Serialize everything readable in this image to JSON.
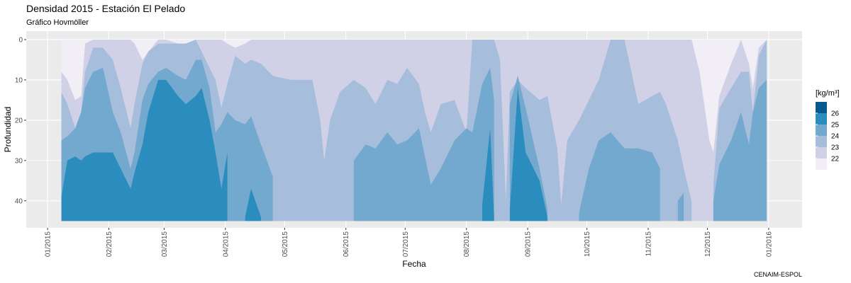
{
  "chart_data": {
    "type": "hovmoller",
    "title": "Densidad 2015 - Estación El Pelado",
    "subtitle": "Gráfico Hovmöller",
    "caption": "CENAIM-ESPOL",
    "x_label": "Fecha",
    "y_label": "Profundidad",
    "x": [
      7,
      10,
      14,
      17,
      19,
      23,
      28,
      33,
      37,
      42,
      44,
      48,
      51,
      56,
      60,
      66,
      70,
      75,
      78,
      82,
      85,
      88,
      91,
      95,
      100,
      103,
      108,
      114,
      123,
      134,
      138,
      140,
      143,
      148,
      155,
      161,
      166,
      172,
      177,
      182,
      188,
      191,
      194,
      199,
      206,
      212,
      215,
      220,
      224,
      226,
      229,
      232,
      234,
      238,
      242,
      249,
      253,
      258,
      260,
      263,
      269,
      274,
      279,
      285,
      292,
      299,
      306,
      310,
      313,
      319,
      322,
      326,
      330,
      335,
      337,
      340,
      346,
      351,
      355,
      357,
      360,
      364
    ],
    "bottom": 45,
    "series": [
      {
        "color": "#f1eef6",
        "values": [
          0,
          0,
          0,
          0,
          0,
          0,
          0,
          0,
          0,
          0,
          0,
          0,
          0,
          0,
          0,
          0,
          0,
          0,
          0,
          0,
          0,
          0,
          0,
          0,
          0,
          0,
          0,
          0,
          0,
          0,
          0,
          0,
          0,
          0,
          0,
          0,
          0,
          0,
          0,
          0,
          0,
          0,
          0,
          0,
          0,
          0,
          0,
          0,
          0,
          0,
          0,
          0,
          0,
          0,
          0,
          0,
          0,
          0,
          0,
          0,
          0,
          0,
          0,
          0,
          0,
          0,
          0,
          0,
          0,
          0,
          0,
          0,
          0,
          0,
          0,
          0,
          0,
          0,
          0,
          0,
          0,
          0
        ]
      },
      {
        "color": "#d0d1e6",
        "values": [
          8,
          10,
          15,
          14,
          1,
          0,
          0,
          0,
          0,
          0,
          1,
          5,
          3,
          0,
          0,
          1,
          1,
          0,
          0,
          0,
          0,
          0,
          1,
          2,
          1,
          0,
          0,
          0,
          0,
          0,
          0,
          0,
          0,
          0,
          0,
          0,
          0,
          0,
          0,
          0,
          0,
          0,
          0,
          0,
          0,
          0,
          0,
          0,
          0,
          0,
          0,
          0,
          0,
          0,
          0,
          0,
          0,
          0,
          0,
          0,
          0,
          0,
          0,
          0,
          0,
          0,
          0,
          0,
          0,
          0,
          0,
          0,
          8,
          25,
          28,
          14,
          6,
          0,
          6,
          12,
          2,
          0
        ]
      },
      {
        "color": "#a6bddb",
        "values": [
          13,
          16,
          22,
          18,
          8,
          2,
          2,
          5,
          12,
          22,
          16,
          6,
          3,
          1,
          1,
          1,
          1,
          0,
          3,
          7,
          10,
          17,
          11,
          4,
          6,
          5,
          6,
          9,
          10,
          10,
          20,
          30,
          20,
          13,
          10,
          12,
          16,
          10,
          11,
          7,
          11,
          18,
          23,
          16,
          15,
          23,
          0,
          0,
          0,
          0,
          5,
          40,
          13,
          10,
          12,
          15,
          14,
          27,
          41,
          25,
          20,
          15,
          10,
          0,
          0,
          16,
          14,
          13,
          16,
          25,
          32,
          40,
          null,
          null,
          36,
          17,
          12,
          8,
          8,
          18,
          4,
          0
        ]
      },
      {
        "color": "#74a9cf",
        "values": [
          25,
          24,
          22,
          18,
          12,
          8,
          7,
          18,
          23,
          32,
          28,
          15,
          11,
          8,
          7,
          9,
          10,
          5,
          5,
          12,
          23,
          21,
          18,
          20,
          21,
          19,
          26,
          34,
          null,
          null,
          null,
          null,
          null,
          null,
          30,
          26,
          27,
          23,
          26,
          25,
          22,
          29,
          36,
          32,
          25,
          22,
          23,
          11,
          7,
          15,
          null,
          null,
          16,
          9,
          17,
          32,
          42,
          null,
          null,
          null,
          43,
          32,
          25,
          23,
          27,
          27,
          28,
          32,
          null,
          40,
          38,
          null,
          null,
          null,
          40,
          31,
          25,
          18,
          26,
          18,
          12,
          10
        ]
      },
      {
        "color": "#2b8cbe",
        "values": [
          39,
          30,
          29,
          30,
          29,
          28,
          28,
          28,
          32,
          37,
          33,
          26,
          18,
          10,
          10,
          14,
          16,
          14,
          12,
          20,
          28,
          37,
          28,
          null,
          44,
          37,
          44,
          null,
          null,
          null,
          null,
          null,
          null,
          null,
          null,
          null,
          null,
          null,
          null,
          null,
          null,
          null,
          null,
          null,
          null,
          null,
          null,
          41,
          22,
          44,
          null,
          null,
          42,
          12,
          28,
          35,
          44,
          null,
          null,
          null,
          null,
          null,
          null,
          null,
          null,
          null,
          null,
          null,
          null,
          null,
          null,
          null,
          null,
          null,
          null,
          null,
          null,
          null,
          null,
          null,
          null,
          null
        ]
      }
    ],
    "xlim": [
      -10.8,
      381.9
    ],
    "xticks": [
      {
        "value": 0,
        "label": "01/2015"
      },
      {
        "value": 31,
        "label": "02/2015"
      },
      {
        "value": 59,
        "label": "03/2015"
      },
      {
        "value": 90,
        "label": "04/2015"
      },
      {
        "value": 120,
        "label": "05/2015"
      },
      {
        "value": 151,
        "label": "06/2015"
      },
      {
        "value": 181,
        "label": "07/2015"
      },
      {
        "value": 212,
        "label": "08/2015"
      },
      {
        "value": 243,
        "label": "09/2015"
      },
      {
        "value": 273,
        "label": "10/2015"
      },
      {
        "value": 304,
        "label": "11/2015"
      },
      {
        "value": 334,
        "label": "12/2015"
      },
      {
        "value": 365,
        "label": "01/2016"
      }
    ],
    "ylim": [
      -2.1,
      46.7
    ],
    "y_reversed": true,
    "yticks": [
      0,
      10,
      20,
      30,
      40
    ],
    "grid": true,
    "legend": {
      "title": "[kg/m³]",
      "breaks": [
        22,
        23,
        24,
        25,
        26
      ],
      "colors": [
        "#f1eef6",
        "#d0d1e6",
        "#a6bddb",
        "#74a9cf",
        "#2b8cbe",
        "#045a8d"
      ]
    }
  }
}
